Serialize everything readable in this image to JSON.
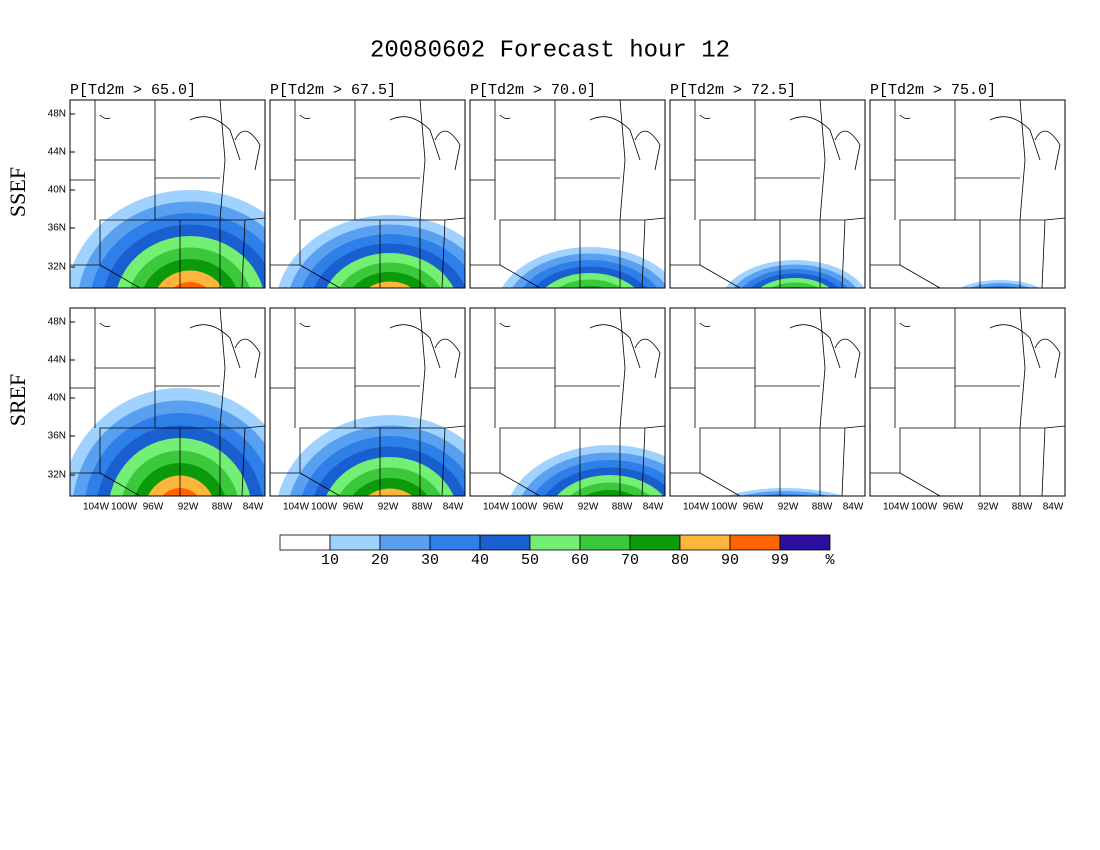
{
  "title": "20080602 Forecast hour 12",
  "panel_titles": [
    "P[Td2m > 65.0]",
    "P[Td2m > 67.5]",
    "P[Td2m > 70.0]",
    "P[Td2m > 72.5]",
    "P[Td2m > 75.0]"
  ],
  "row_labels": [
    "SSEF",
    "SREF"
  ],
  "lat_ticks": [
    "48N",
    "44N",
    "40N",
    "36N",
    "32N"
  ],
  "lon_ticks": [
    "104W",
    "100W",
    "96W",
    "92W",
    "88W",
    "84W"
  ],
  "colorbar": {
    "colors": [
      "#ffffff",
      "#a0d2ff",
      "#5aa0f0",
      "#2e80e8",
      "#1a5fd0",
      "#73f073",
      "#3cc83c",
      "#0a9a0a",
      "#ffb43c",
      "#ff6400",
      "#2d0fa0"
    ],
    "ticks": [
      10,
      20,
      30,
      40,
      50,
      60,
      70,
      80,
      90,
      99
    ],
    "unit": "%"
  }
}
